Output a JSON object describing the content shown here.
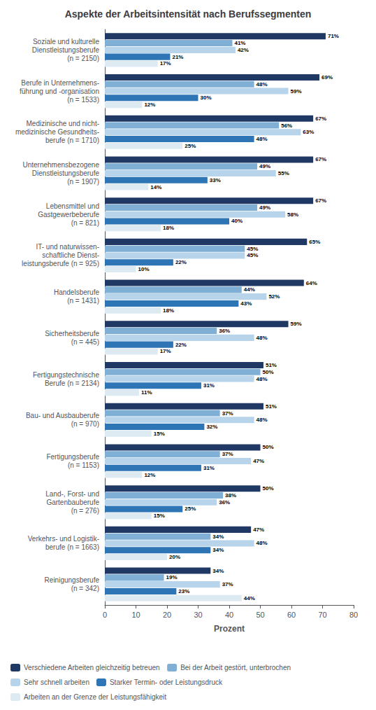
{
  "chart_data": {
    "type": "bar",
    "orientation": "horizontal",
    "title": "Aspekte der Arbeitsintensität nach Berufssegmenten",
    "xlabel": "Prozent",
    "xlim": [
      0,
      80
    ],
    "xticks": [
      0,
      10,
      20,
      30,
      40,
      50,
      60,
      70,
      80
    ],
    "grid": false,
    "legend": "bottom",
    "data_labels": true,
    "categories": [
      "Soziale und kulturelle\nDienstleistungsberufe\n(n = 2150)",
      "Berufe in Unternehmens-\nführung und -organisation\n(n = 1533)",
      "Medizinische und nicht-\nmedizinische Gesundheits-\nberufe (n = 1710)",
      "Unternehmensbezogene\nDienstleistungsberufe\n(n = 1907)",
      "Lebensmittel und\nGastgewerbeberufe\n(n = 821)",
      "IT- und naturwissen-\nschaftliche Dienst-\nleistungsberufe (n = 925)",
      "Handelsberufe\n(n = 1431)",
      "Sicherheitsberufe\n(n = 445)",
      "Fertigungstechnische\nBerufe (n = 2134)",
      "Bau- und Ausbauberufe\n(n = 970)",
      "Fertigungsberufe\n(n = 1153)",
      "Land-, Forst- und\nGartenbauberufe\n(n = 276)",
      "Verkehrs- und Logistik-\nberufe (n = 1663)",
      "Reinigungsberufe\n(n = 342)"
    ],
    "series": [
      {
        "name": "Verschiedene Arbeiten gleichzeitig betreuen",
        "color": "#1f3864",
        "values": [
          71,
          69,
          67,
          67,
          67,
          65,
          64,
          59,
          51,
          51,
          50,
          50,
          47,
          34
        ],
        "value_labels": [
          "71%",
          "69%",
          "67%",
          "67%",
          "67%",
          "65%",
          "64%",
          "59%",
          "51%",
          "51%",
          "50%",
          "50%",
          "47%",
          "34%"
        ]
      },
      {
        "name": "Bei der Arbeit gestört, unterbrochen",
        "color": "#7fafd4",
        "values": [
          41,
          48,
          56,
          49,
          49,
          45,
          44,
          36,
          50,
          37,
          37,
          38,
          34,
          19
        ],
        "value_labels": [
          "41%",
          "48%",
          "56%",
          "49%",
          "49%",
          "45%",
          "44%",
          "36%",
          "50%",
          "37%",
          "37%",
          "38%",
          "34%",
          "19%"
        ]
      },
      {
        "name": "Sehr schnell arbeiten",
        "color": "#b8d4ea",
        "values": [
          42,
          59,
          63,
          55,
          58,
          45,
          52,
          48,
          48,
          48,
          47,
          36,
          48,
          37
        ],
        "value_labels": [
          "42%",
          "59%",
          "63%",
          "55%",
          "58%",
          "45%",
          "52%",
          "48%",
          "48%",
          "48%",
          "47%",
          "36%",
          "48%",
          "37%"
        ]
      },
      {
        "name": "Starker Termin- oder Leistungsdruck",
        "color": "#2e75b6",
        "values": [
          21,
          30,
          48,
          33,
          40,
          22,
          43,
          22,
          31,
          32,
          31,
          25,
          34,
          23
        ],
        "value_labels": [
          "21%",
          "30%",
          "48%",
          "33%",
          "40%",
          "22%",
          "43%",
          "22%",
          "31%",
          "32%",
          "31%",
          "25%",
          "34%",
          "23%"
        ]
      },
      {
        "name": "Arbeiten an der Grenze der Leistungsfähigkeit",
        "color": "#deeaf1",
        "values": [
          17,
          12,
          25,
          14,
          18,
          10,
          18,
          17,
          11,
          15,
          12,
          15,
          20,
          44
        ],
        "value_labels": [
          "17%",
          "12%",
          "25%",
          "14%",
          "18%",
          "10%",
          "18%",
          "17%",
          "11%",
          "15%",
          "12%",
          "15%",
          "20%",
          "44%"
        ]
      }
    ]
  }
}
